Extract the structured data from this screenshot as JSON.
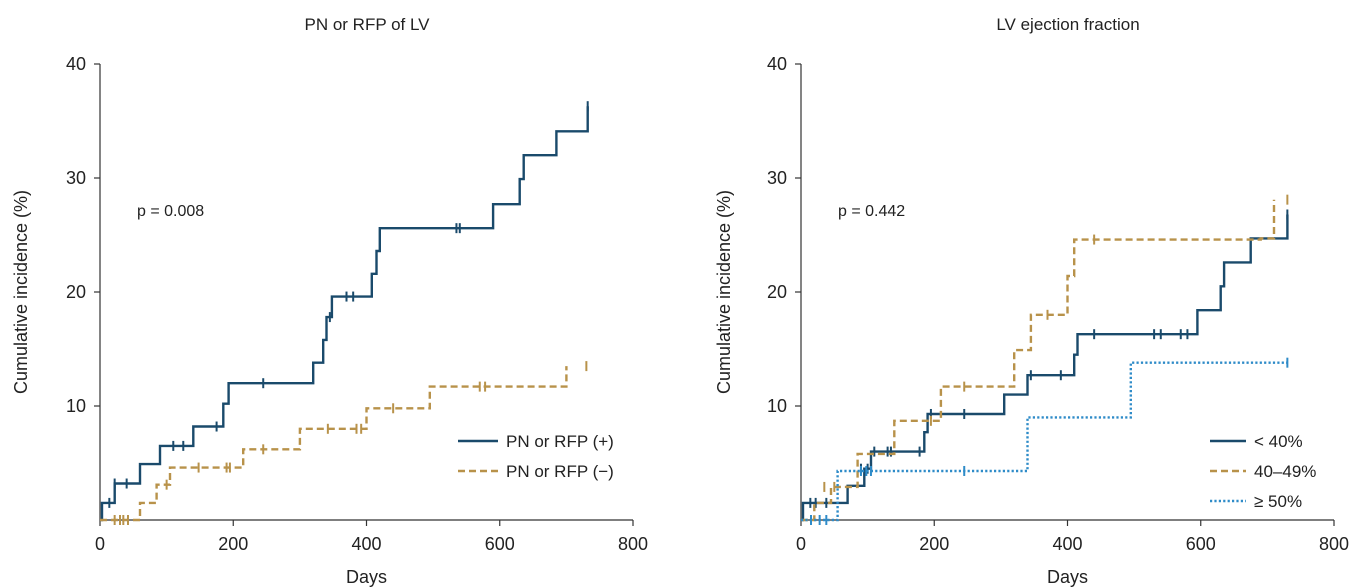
{
  "chart_data": [
    {
      "type": "line",
      "title": "PN or RFP of LV",
      "xlabel": "Days",
      "ylabel": "Cumulative incidence (%)",
      "xlim": [
        0,
        800
      ],
      "ylim": [
        0,
        40
      ],
      "x_ticks": [
        "0",
        "200",
        "400",
        "800",
        "600"
      ],
      "x_tick_values": [
        0,
        200,
        400,
        800,
        600
      ],
      "y_ticks": [
        "10",
        "20",
        "30",
        "40"
      ],
      "y_tick_values": [
        10,
        20,
        30,
        40
      ],
      "grid": false,
      "annotation": "p = 0.008",
      "legend_position": "bottom-right",
      "series": [
        {
          "name": "PN or RFP (+)",
          "color": "#1a4a6b",
          "dash": "solid",
          "steps": [
            [
              0,
              0
            ],
            [
              3,
              1.5
            ],
            [
              22,
              3.2
            ],
            [
              60,
              4.9
            ],
            [
              90,
              6.5
            ],
            [
              140,
              8.2
            ],
            [
              185,
              10.2
            ],
            [
              193,
              12
            ],
            [
              320,
              13.8
            ],
            [
              335,
              15.8
            ],
            [
              340,
              17.8
            ],
            [
              348,
              19.6
            ],
            [
              408,
              21.6
            ],
            [
              415,
              23.6
            ],
            [
              420,
              25.6
            ],
            [
              590,
              27.7
            ],
            [
              630,
              29.9
            ],
            [
              636,
              32
            ],
            [
              685,
              34.1
            ],
            [
              732,
              36.3
            ]
          ],
          "censor": [
            [
              14,
              1.5
            ],
            [
              22,
              3.2
            ],
            [
              40,
              3.2
            ],
            [
              110,
              6.5
            ],
            [
              125,
              6.5
            ],
            [
              175,
              8.2
            ],
            [
              245,
              12
            ],
            [
              345,
              17.8
            ],
            [
              370,
              19.6
            ],
            [
              380,
              19.6
            ],
            [
              535,
              25.6
            ],
            [
              540,
              25.6
            ],
            [
              732,
              36.3
            ]
          ]
        },
        {
          "name": "PN or RFP (−)",
          "color": "#b8924a",
          "dash": "dashed",
          "steps": [
            [
              0,
              0
            ],
            [
              60,
              1.5
            ],
            [
              85,
              3.1
            ],
            [
              105,
              4.6
            ],
            [
              215,
              6.2
            ],
            [
              300,
              8
            ],
            [
              400,
              9.8
            ],
            [
              495,
              11.7
            ],
            [
              700,
              13.5
            ]
          ],
          "censor": [
            [
              22,
              0
            ],
            [
              30,
              0
            ],
            [
              35,
              0
            ],
            [
              42,
              0
            ],
            [
              100,
              3.1
            ],
            [
              148,
              4.6
            ],
            [
              190,
              4.6
            ],
            [
              195,
              4.6
            ],
            [
              245,
              6.2
            ],
            [
              342,
              8
            ],
            [
              385,
              8
            ],
            [
              392,
              8
            ],
            [
              440,
              9.8
            ],
            [
              570,
              11.7
            ],
            [
              578,
              11.7
            ],
            [
              730,
              13.5
            ]
          ]
        }
      ]
    },
    {
      "type": "line",
      "title": "LV ejection fraction",
      "xlabel": "Days",
      "ylabel": "Cumulative incidence (%)",
      "xlim": [
        0,
        800
      ],
      "ylim": [
        0,
        40
      ],
      "x_ticks": [
        "0",
        "200",
        "400",
        "600",
        "800"
      ],
      "x_tick_values": [
        0,
        200,
        400,
        600,
        800
      ],
      "y_ticks": [
        "10",
        "20",
        "30",
        "40"
      ],
      "y_tick_values": [
        10,
        20,
        30,
        40
      ],
      "grid": false,
      "annotation": "p = 0.442",
      "legend_position": "bottom-right",
      "series": [
        {
          "name": "< 40%",
          "color": "#1a4a6b",
          "dash": "solid",
          "steps": [
            [
              0,
              0
            ],
            [
              3,
              1.5
            ],
            [
              52,
              1.5
            ],
            [
              60,
              1.5
            ],
            [
              70,
              3
            ],
            [
              95,
              4.5
            ],
            [
              105,
              6
            ],
            [
              185,
              7.7
            ],
            [
              190,
              9.3
            ],
            [
              305,
              11
            ],
            [
              340,
              12.7
            ],
            [
              410,
              14.5
            ],
            [
              415,
              16.3
            ],
            [
              595,
              18.4
            ],
            [
              630,
              20.5
            ],
            [
              635,
              22.6
            ],
            [
              675,
              24.7
            ],
            [
              730,
              26.8
            ]
          ],
          "censor": [
            [
              14,
              1.5
            ],
            [
              22,
              1.5
            ],
            [
              38,
              1.5
            ],
            [
              90,
              4.5
            ],
            [
              100,
              4.5
            ],
            [
              110,
              6
            ],
            [
              130,
              6
            ],
            [
              135,
              6
            ],
            [
              178,
              6
            ],
            [
              195,
              9.3
            ],
            [
              245,
              9.3
            ],
            [
              345,
              12.7
            ],
            [
              390,
              12.7
            ],
            [
              440,
              16.3
            ],
            [
              530,
              16.3
            ],
            [
              540,
              16.3
            ],
            [
              570,
              16.3
            ],
            [
              580,
              16.3
            ],
            [
              730,
              26.8
            ]
          ]
        },
        {
          "name": "40–49%",
          "color": "#b8924a",
          "dash": "dashed",
          "steps": [
            [
              0,
              0
            ],
            [
              20,
              1.5
            ],
            [
              45,
              2.9
            ],
            [
              85,
              5.8
            ],
            [
              140,
              8.7
            ],
            [
              210,
              11.7
            ],
            [
              320,
              14.9
            ],
            [
              345,
              18
            ],
            [
              400,
              21.4
            ],
            [
              410,
              24.6
            ],
            [
              690,
              24.7
            ],
            [
              710,
              28.1
            ]
          ],
          "censor": [
            [
              35,
              2.9
            ],
            [
              50,
              2.9
            ],
            [
              195,
              8.7
            ],
            [
              245,
              11.7
            ],
            [
              370,
              18
            ],
            [
              440,
              24.6
            ],
            [
              730,
              28.1
            ]
          ]
        },
        {
          "name": "≥ 50%",
          "color": "#2e8bc8",
          "dash": "dotted",
          "steps": [
            [
              0,
              0
            ],
            [
              55,
              4.3
            ],
            [
              340,
              9
            ],
            [
              495,
              13.8
            ],
            [
              730,
              13.8
            ]
          ],
          "censor": [
            [
              15,
              0
            ],
            [
              28,
              0
            ],
            [
              38,
              0
            ],
            [
              90,
              4.3
            ],
            [
              98,
              4.3
            ],
            [
              105,
              4.3
            ],
            [
              245,
              4.3
            ],
            [
              730,
              13.8
            ]
          ]
        }
      ]
    }
  ]
}
